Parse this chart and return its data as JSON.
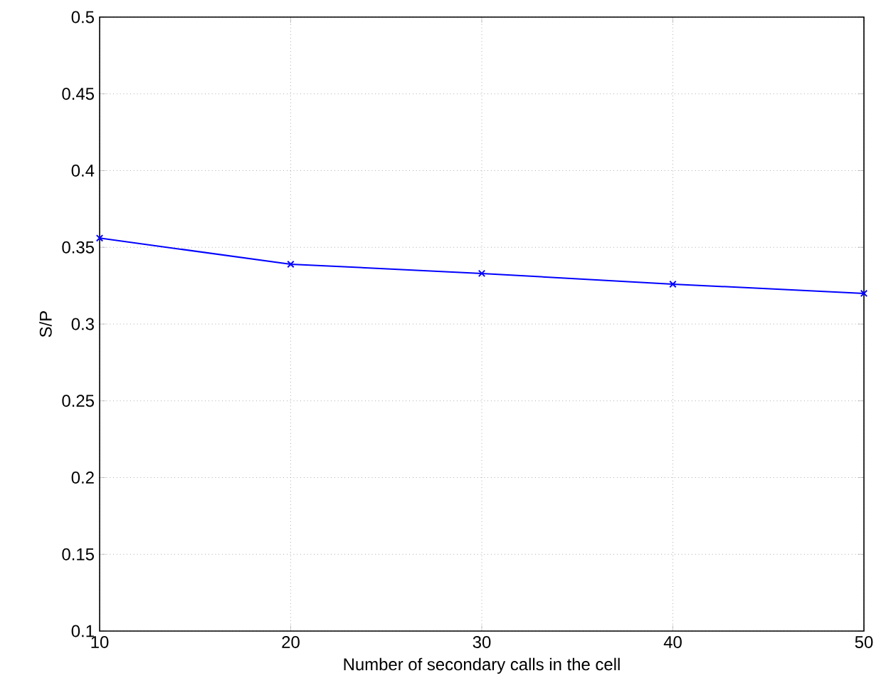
{
  "chart_data": {
    "type": "line",
    "xlabel": "Number of secondary calls in the cell",
    "ylabel": "S/P",
    "x": [
      10,
      20,
      30,
      40,
      50
    ],
    "series": [
      {
        "color": "#0000ff",
        "values": [
          0.356,
          0.339,
          0.333,
          0.326,
          0.32
        ]
      }
    ],
    "xlim": [
      10,
      50
    ],
    "xticks": [
      10,
      20,
      30,
      40,
      50
    ],
    "ylim": [
      0.1,
      0.5
    ],
    "yticks": [
      0.1,
      0.15,
      0.2,
      0.25,
      0.3,
      0.35,
      0.4,
      0.45,
      0.5
    ],
    "grid": true,
    "marker": "cross",
    "line_style": "solid"
  }
}
